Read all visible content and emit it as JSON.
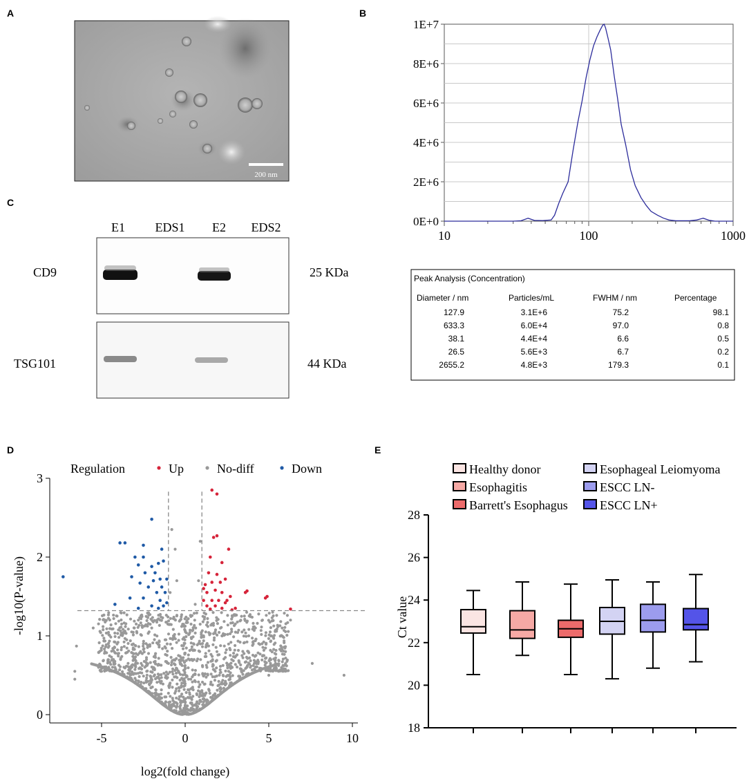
{
  "panels": {
    "A": "A",
    "B": "B",
    "C": "C",
    "D": "D",
    "E": "E"
  },
  "panel_a": {
    "scale_bar_label": "200 nm"
  },
  "panel_c": {
    "lanes": [
      "E1",
      "EDS1",
      "E2",
      "EDS2"
    ],
    "rows": [
      {
        "protein": "CD9",
        "size": "25 KDa"
      },
      {
        "protein": "TSG101",
        "size": "44 KDa"
      }
    ]
  },
  "peak_table": {
    "title": "Peak Analysis (Concentration)",
    "headers": [
      "Diameter / nm",
      "Particles/mL",
      "FWHM / nm",
      "Percentage"
    ],
    "rows": [
      [
        "127.9",
        "3.1E+6",
        "75.2",
        "98.1"
      ],
      [
        "633.3",
        "6.0E+4",
        "97.0",
        "0.8"
      ],
      [
        "38.1",
        "4.4E+4",
        "6.6",
        "0.5"
      ],
      [
        "26.5",
        "5.6E+3",
        "6.7",
        "0.2"
      ],
      [
        "2655.2",
        "4.8E+3",
        "179.3",
        "0.1"
      ]
    ]
  },
  "chart_data": [
    {
      "id": "B",
      "type": "line",
      "title": "",
      "xlabel": "",
      "ylabel": "",
      "xscale": "log",
      "xlim": [
        10,
        1000
      ],
      "ylim": [
        0,
        10000000
      ],
      "x_ticks": [
        10,
        100,
        1000
      ],
      "x_tick_labels": [
        "10",
        "100",
        "1000"
      ],
      "y_ticks": [
        0,
        2000000,
        4000000,
        6000000,
        8000000,
        10000000
      ],
      "y_tick_labels": [
        "0E+0",
        "2E+6",
        "4E+6",
        "6E+6",
        "8E+6",
        "1E+7"
      ],
      "color": "#2b2b9b",
      "x": [
        10,
        20,
        30,
        34,
        38,
        42,
        48,
        55,
        58,
        62,
        66,
        72,
        78,
        84,
        90,
        96,
        102,
        108,
        114,
        120,
        125,
        128,
        131,
        136,
        142,
        150,
        158,
        168,
        180,
        195,
        210,
        230,
        250,
        270,
        300,
        330,
        360,
        400,
        450,
        500,
        560,
        620,
        680,
        750,
        850,
        1000
      ],
      "y": [
        0,
        0,
        0,
        20000,
        150000,
        40000,
        30000,
        60000,
        300000,
        900000,
        1400000,
        2000000,
        3600000,
        5000000,
        6100000,
        7300000,
        8200000,
        8900000,
        9350000,
        9700000,
        9950000,
        10000000,
        9800000,
        9300000,
        8700000,
        7400000,
        6300000,
        4900000,
        3900000,
        2600000,
        1800000,
        1200000,
        800000,
        500000,
        300000,
        150000,
        60000,
        20000,
        20000,
        20000,
        60000,
        150000,
        50000,
        0,
        0,
        0
      ]
    },
    {
      "id": "D",
      "type": "scatter",
      "title": "",
      "xlabel": "log2(fold change)",
      "ylabel": "-log10(P-value)",
      "xlim": [
        -8.5,
        10.5
      ],
      "ylim": [
        -0.05,
        3
      ],
      "x_ticks": [
        -5,
        0,
        5,
        10
      ],
      "x_tick_labels": [
        "-5",
        "0",
        "5",
        "10"
      ],
      "y_ticks": [
        0,
        1,
        2,
        3
      ],
      "y_tick_labels": [
        "0",
        "1",
        "2",
        "3"
      ],
      "threshold_x": [
        -1,
        1
      ],
      "threshold_y": 1.32,
      "legend": {
        "title": "Regulation",
        "items": [
          {
            "label": "Up",
            "color": "#d6243a"
          },
          {
            "label": "No-diff",
            "color": "#999999"
          },
          {
            "label": "Down",
            "color": "#1f5aa6"
          }
        ]
      },
      "up_points": [
        [
          1.6,
          2.85
        ],
        [
          1.9,
          2.8
        ],
        [
          1.7,
          2.25
        ],
        [
          1.9,
          2.27
        ],
        [
          2.6,
          2.1
        ],
        [
          1.5,
          2.0
        ],
        [
          2.2,
          1.93
        ],
        [
          1.4,
          1.8
        ],
        [
          1.9,
          1.78
        ],
        [
          2.4,
          1.72
        ],
        [
          1.2,
          1.65
        ],
        [
          1.6,
          1.68
        ],
        [
          2.1,
          1.68
        ],
        [
          1.3,
          1.55
        ],
        [
          1.8,
          1.58
        ],
        [
          2.2,
          1.55
        ],
        [
          2.7,
          1.5
        ],
        [
          3.6,
          1.55
        ],
        [
          3.7,
          1.57
        ],
        [
          4.8,
          1.48
        ],
        [
          4.9,
          1.5
        ],
        [
          1.1,
          1.45
        ],
        [
          1.6,
          1.45
        ],
        [
          2.0,
          1.45
        ],
        [
          2.5,
          1.45
        ],
        [
          1.3,
          1.38
        ],
        [
          1.8,
          1.38
        ],
        [
          2.2,
          1.35
        ],
        [
          3.0,
          1.35
        ],
        [
          2.8,
          1.33
        ],
        [
          1.5,
          1.34
        ],
        [
          6.3,
          1.34
        ],
        [
          1.1,
          1.6
        ],
        [
          2.4,
          1.42
        ]
      ],
      "down_points": [
        [
          -7.3,
          1.75
        ],
        [
          -2.0,
          2.48
        ],
        [
          -3.9,
          2.18
        ],
        [
          -3.6,
          2.18
        ],
        [
          -2.5,
          2.15
        ],
        [
          -3.0,
          2.0
        ],
        [
          -2.5,
          2.0
        ],
        [
          -1.4,
          2.1
        ],
        [
          -1.3,
          1.95
        ],
        [
          -1.6,
          1.92
        ],
        [
          -2.8,
          1.9
        ],
        [
          -2.0,
          1.88
        ],
        [
          -1.8,
          1.8
        ],
        [
          -2.4,
          1.8
        ],
        [
          -3.2,
          1.75
        ],
        [
          -1.1,
          1.72
        ],
        [
          -1.5,
          1.72
        ],
        [
          -1.9,
          1.7
        ],
        [
          -2.7,
          1.67
        ],
        [
          -1.4,
          1.62
        ],
        [
          -2.2,
          1.62
        ],
        [
          -1.2,
          1.55
        ],
        [
          -1.7,
          1.55
        ],
        [
          -2.5,
          1.48
        ],
        [
          -1.5,
          1.45
        ],
        [
          -3.3,
          1.48
        ],
        [
          -4.2,
          1.4
        ],
        [
          -1.3,
          1.38
        ],
        [
          -2.0,
          1.38
        ],
        [
          -2.8,
          1.35
        ],
        [
          -1.6,
          1.35
        ],
        [
          -1.1,
          1.42
        ]
      ],
      "nodiff_points": [
        [
          -6.5,
          0.87
        ],
        [
          -6.6,
          0.55
        ],
        [
          -6.6,
          0.45
        ],
        [
          -5.5,
          1.1
        ],
        [
          -5.0,
          0.55
        ],
        [
          -4.8,
          0.8
        ],
        [
          -4.2,
          0.6
        ],
        [
          -3.8,
          1.15
        ],
        [
          -3.5,
          0.95
        ],
        [
          -3.2,
          1.05
        ],
        [
          -3.0,
          0.7
        ],
        [
          -2.8,
          1.2
        ],
        [
          -2.5,
          0.9
        ],
        [
          -2.3,
          0.55
        ],
        [
          -2.0,
          1.1
        ],
        [
          -1.8,
          0.75
        ],
        [
          -1.5,
          1.2
        ],
        [
          -1.2,
          0.95
        ],
        [
          -1.0,
          0.65
        ],
        [
          -0.8,
          2.35
        ],
        [
          -0.6,
          2.1
        ],
        [
          -0.9,
          1.55
        ],
        [
          -0.5,
          1.7
        ],
        [
          -0.3,
          1.2
        ],
        [
          -0.7,
          1.0
        ],
        [
          -0.4,
          0.75
        ],
        [
          -0.2,
          0.4
        ],
        [
          0.0,
          0.12
        ],
        [
          0.2,
          0.45
        ],
        [
          0.5,
          0.9
        ],
        [
          0.6,
          1.4
        ],
        [
          0.8,
          1.7
        ],
        [
          0.9,
          2.2
        ],
        [
          1.1,
          1.0
        ],
        [
          1.3,
          0.6
        ],
        [
          1.6,
          1.15
        ],
        [
          1.9,
          0.8
        ],
        [
          2.2,
          1.0
        ],
        [
          2.6,
          0.55
        ],
        [
          3.0,
          1.15
        ],
        [
          3.4,
          0.75
        ],
        [
          3.8,
          1.0
        ],
        [
          4.2,
          0.6
        ],
        [
          4.6,
          0.9
        ],
        [
          5.0,
          0.5
        ],
        [
          5.4,
          0.65
        ],
        [
          5.8,
          1.1
        ],
        [
          6.0,
          0.8
        ],
        [
          6.3,
          1.2
        ],
        [
          7.6,
          0.65
        ],
        [
          9.5,
          0.5
        ]
      ],
      "nodiff_generated": {
        "note": "dense cloud drawn procedurally below threshold",
        "count": 1300
      }
    },
    {
      "id": "E",
      "type": "box",
      "title": "",
      "xlabel": "",
      "ylabel": "Ct value",
      "ylim": [
        18,
        28
      ],
      "y_ticks": [
        18,
        20,
        22,
        24,
        26,
        28
      ],
      "y_tick_labels": [
        "18",
        "20",
        "22",
        "24",
        "26",
        "28"
      ],
      "series": [
        {
          "name": "Healthy donor",
          "color": "#fbe5e3",
          "min": 20.5,
          "q1": 22.45,
          "median": 22.75,
          "q3": 23.55,
          "max": 24.45
        },
        {
          "name": "Esophagitis",
          "color": "#f6a9a5",
          "min": 21.4,
          "q1": 22.2,
          "median": 22.6,
          "q3": 23.5,
          "max": 24.85
        },
        {
          "name": "Barrett's Esophagus",
          "color": "#ec6b6b",
          "min": 20.5,
          "q1": 22.25,
          "median": 22.65,
          "q3": 23.05,
          "max": 24.75
        },
        {
          "name": "Esophageal Leiomyoma",
          "color": "#d3d3f3",
          "min": 20.3,
          "q1": 22.4,
          "median": 23.0,
          "q3": 23.65,
          "max": 24.95
        },
        {
          "name": "ESCC LN-",
          "color": "#9c9cee",
          "min": 20.8,
          "q1": 22.5,
          "median": 23.05,
          "q3": 23.8,
          "max": 24.85
        },
        {
          "name": "ESCC LN+",
          "color": "#5454e8",
          "min": 21.1,
          "q1": 22.6,
          "median": 22.85,
          "q3": 23.6,
          "max": 25.2
        }
      ]
    }
  ]
}
